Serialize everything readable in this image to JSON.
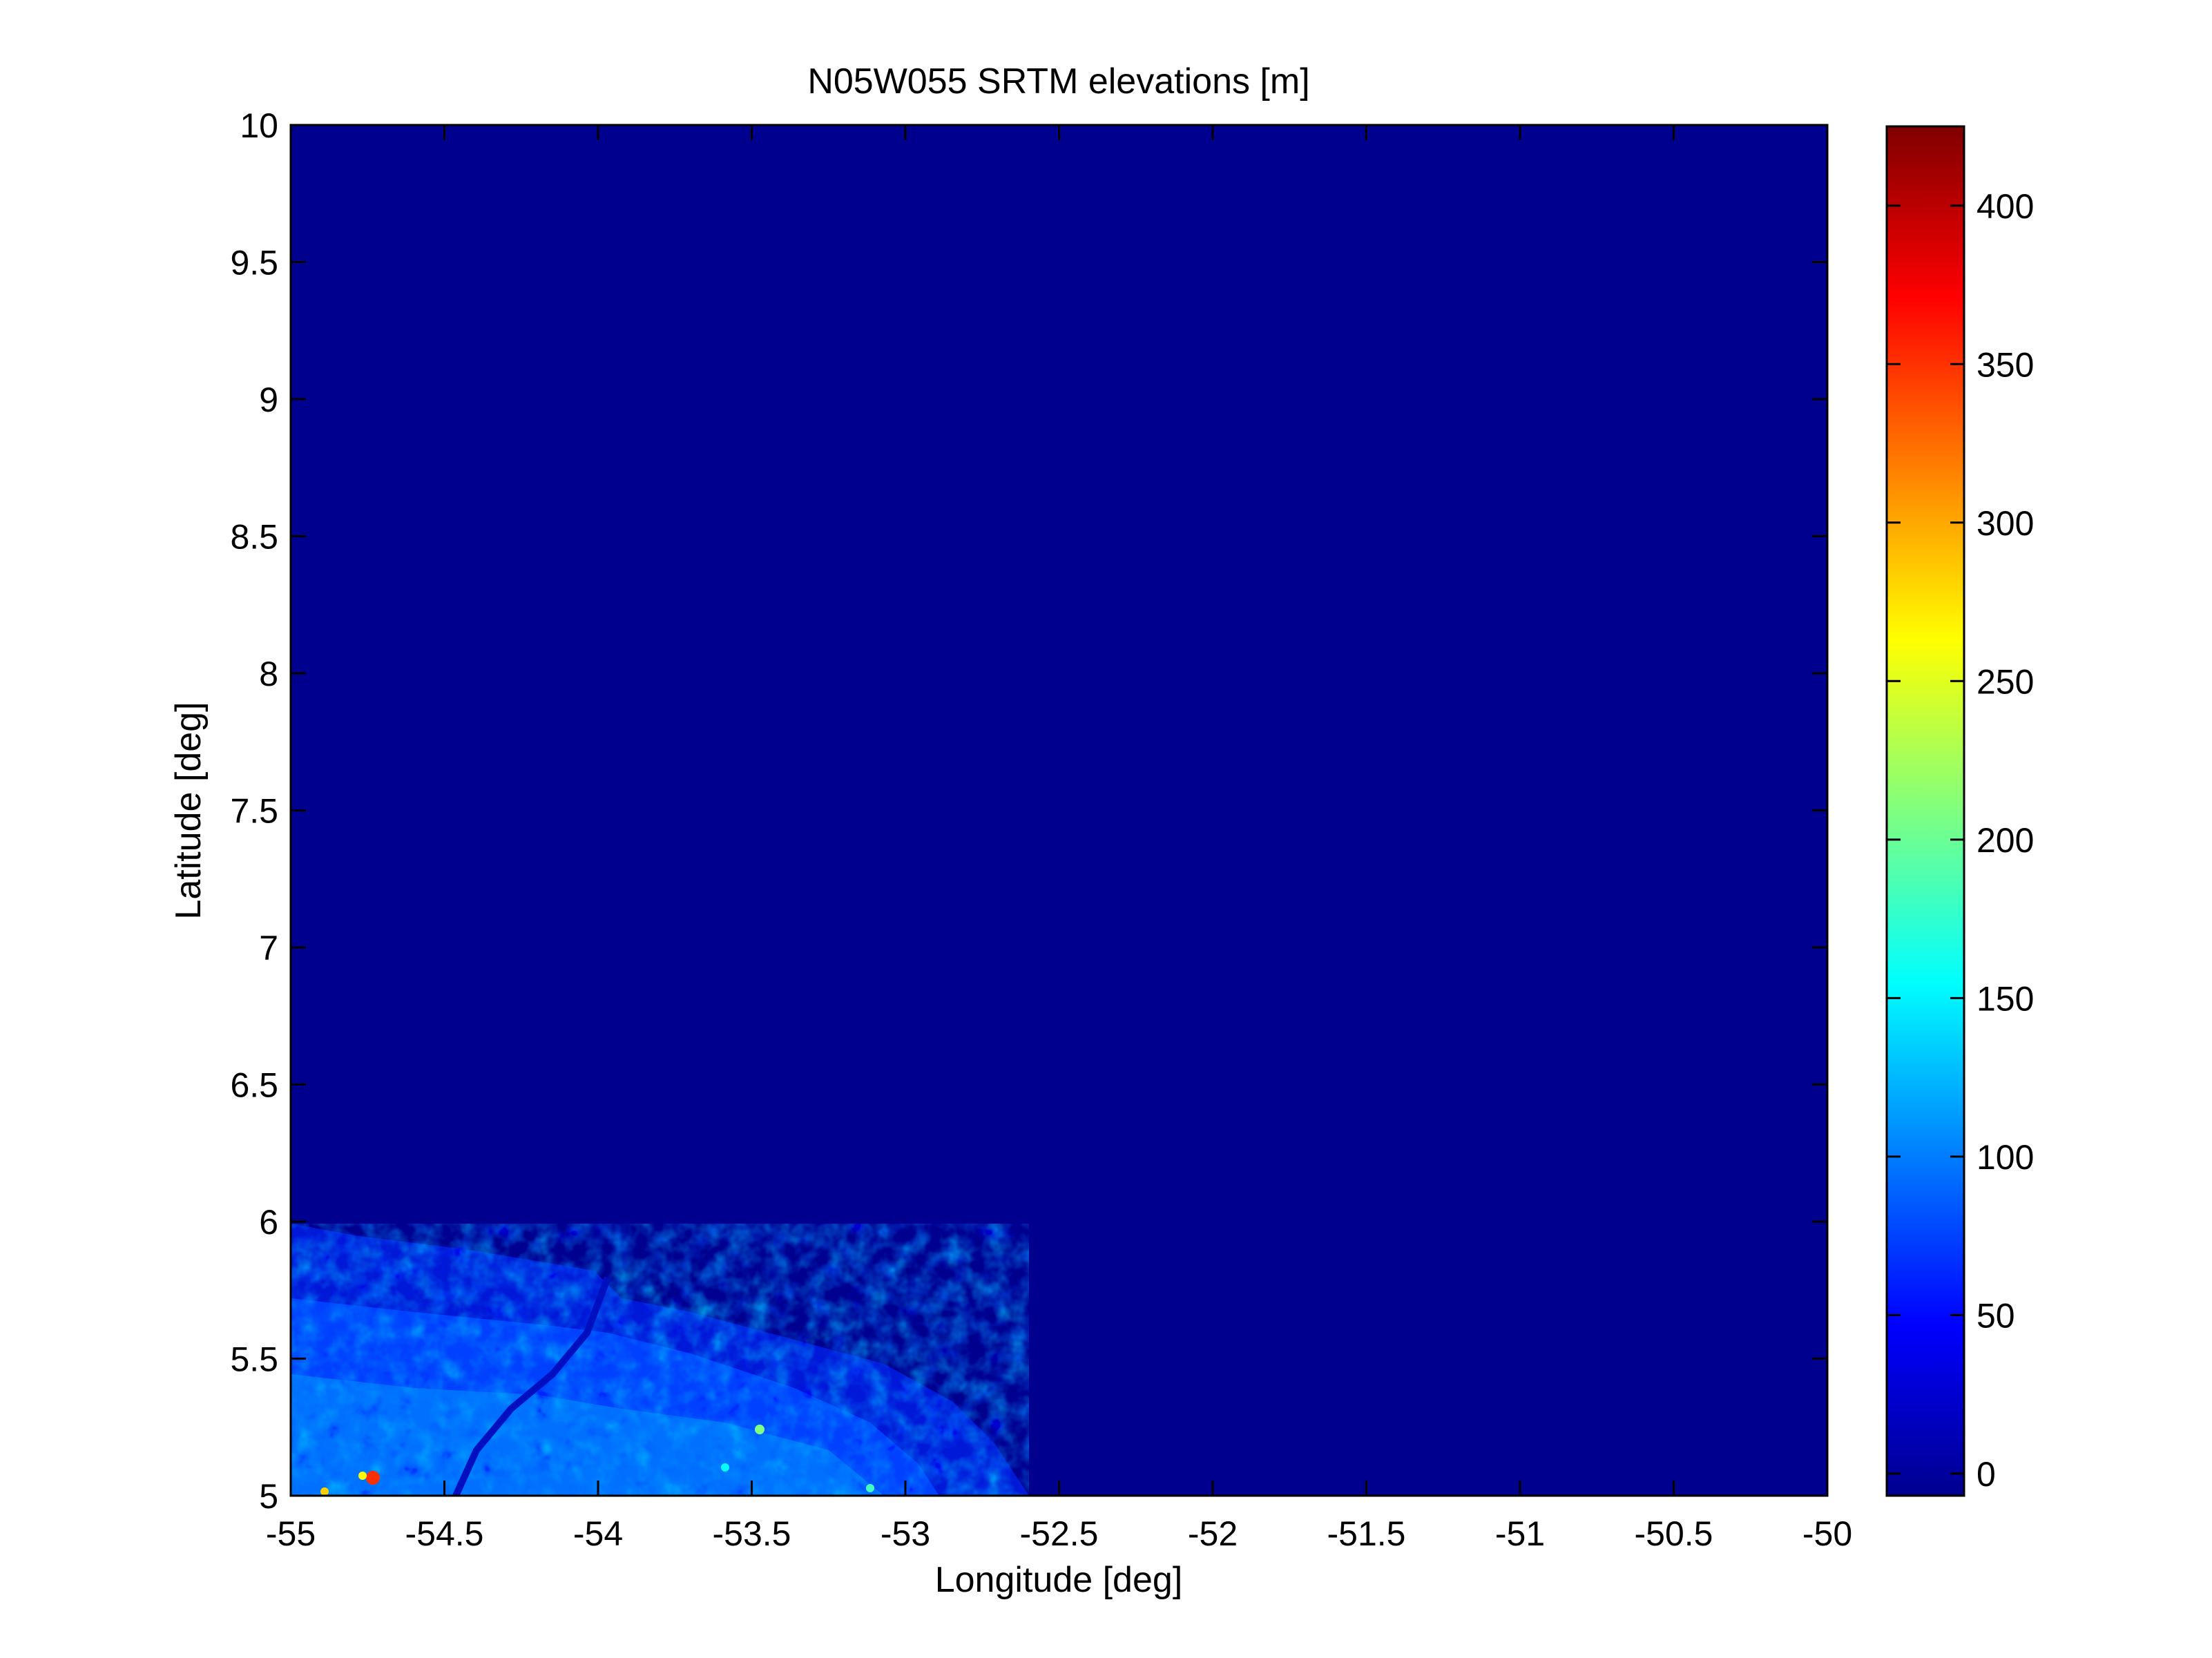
{
  "chart_data": {
    "type": "heatmap",
    "title": "N05W055 SRTM elevations [m]",
    "xlabel": "Longitude [deg]",
    "ylabel": "Latitude [deg]",
    "xlim": [
      -55,
      -50
    ],
    "ylim": [
      5,
      10
    ],
    "x_ticks": [
      "-55",
      "-54.5",
      "-54",
      "-53.5",
      "-53",
      "-52.5",
      "-52",
      "-51.5",
      "-51",
      "-50.5",
      "-50"
    ],
    "y_ticks": [
      "5",
      "5.5",
      "6",
      "6.5",
      "7",
      "7.5",
      "8",
      "8.5",
      "9",
      "9.5",
      "10"
    ],
    "colorbar": {
      "colormap": "jet",
      "range": [
        -7,
        425
      ],
      "ticks": [
        "0",
        "50",
        "100",
        "150",
        "200",
        "250",
        "300",
        "350",
        "400"
      ]
    },
    "background_value": 0,
    "background_color": "#00008f",
    "elevated_region": {
      "description_value_range": [
        10,
        150
      ],
      "lon_range": [
        -55,
        -52.5
      ],
      "lat_range": [
        5,
        6
      ]
    },
    "grid": false
  }
}
